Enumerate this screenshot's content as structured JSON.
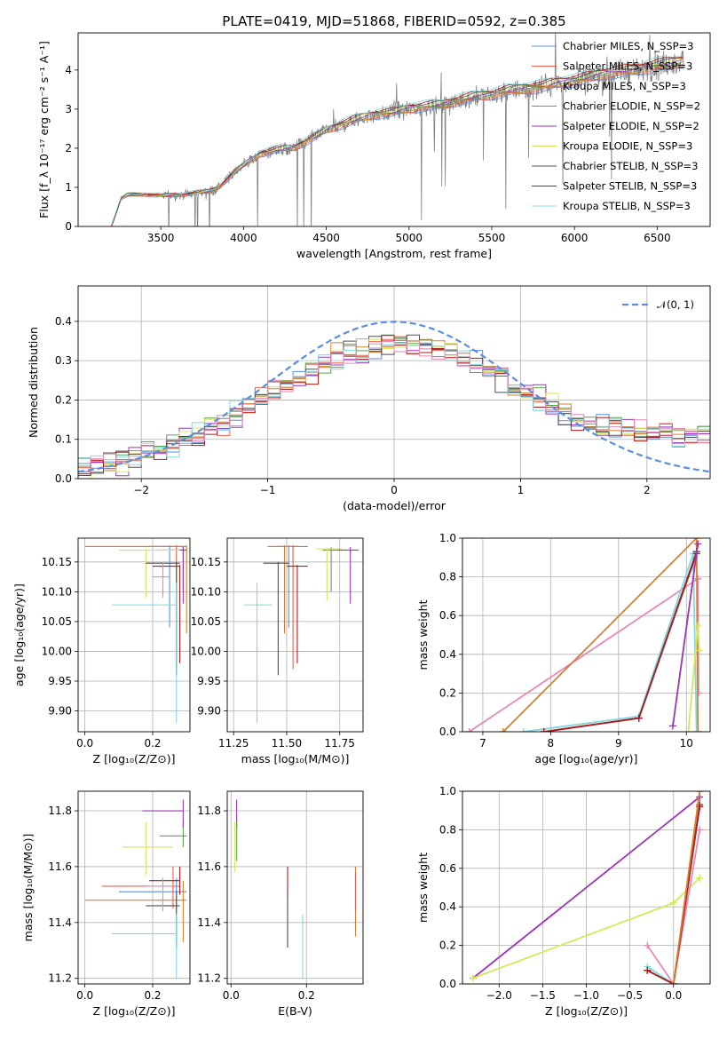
{
  "colors": {
    "Chabrier MILES": "#5b8de0",
    "Salpeter MILES": "#e8614a",
    "Kroupa MILES": "#d97f2a",
    "Chabrier ELODIE": "#5aa05a",
    "Salpeter ELODIE": "#9b35b8",
    "Kroupa ELODIE": "#d4e85a",
    "Chabrier STELIB": "#505050",
    "Salpeter STELIB": "#b01a1a",
    "Kroupa STELIB": "#7fd8e0",
    "extra": "#e688b8",
    "data": "#808080"
  },
  "chart_data": [
    {
      "id": "spectrum",
      "type": "line",
      "title": "PLATE=0419, MJD=51868, FIBERID=0592, z=0.385",
      "xlabel": "wavelength [Angstrom, rest frame]",
      "ylabel": "Flux [f_λ 10⁻¹⁷ erg cm⁻² s⁻¹ A⁻¹]",
      "xlim": [
        3000,
        6820
      ],
      "ylim": [
        0,
        4.95
      ],
      "xticks": [
        3500,
        4000,
        4500,
        5000,
        5500,
        6000,
        6500
      ],
      "yticks": [
        0,
        1,
        2,
        3,
        4
      ],
      "grid": false,
      "legend_position": "top-right",
      "continuum": {
        "x": [
          3200,
          3260,
          3300,
          3400,
          3500,
          3600,
          3700,
          3800,
          3850,
          3900,
          3950,
          4000,
          4100,
          4200,
          4300,
          4400,
          4500,
          4600,
          4700,
          4800,
          4900,
          5000,
          5100,
          5200,
          5300,
          5400,
          5500,
          5600,
          5700,
          5800,
          5900,
          6000,
          6100,
          6200,
          6300,
          6400,
          6500,
          6600,
          6660
        ],
        "y": [
          0.0,
          0.7,
          0.8,
          0.82,
          0.78,
          0.8,
          0.85,
          0.9,
          1.0,
          1.2,
          1.4,
          1.55,
          1.85,
          1.95,
          2.0,
          2.2,
          2.45,
          2.6,
          2.75,
          2.85,
          2.9,
          3.0,
          3.05,
          3.1,
          3.2,
          3.3,
          3.35,
          3.45,
          3.5,
          3.55,
          3.65,
          3.7,
          3.8,
          3.9,
          3.95,
          4.0,
          4.1,
          4.15,
          4.2
        ]
      },
      "series": [
        {
          "name": "Chabrier MILES, N_SSP=3",
          "color_key": "Chabrier MILES"
        },
        {
          "name": "Salpeter MILES, N_SSP=3",
          "color_key": "Salpeter MILES"
        },
        {
          "name": "Kroupa MILES, N_SSP=3",
          "color_key": "Kroupa MILES"
        },
        {
          "name": "Chabrier ELODIE, N_SSP=2",
          "color_key": "Chabrier ELODIE"
        },
        {
          "name": "Salpeter ELODIE, N_SSP=2",
          "color_key": "Salpeter ELODIE"
        },
        {
          "name": "Kroupa ELODIE, N_SSP=3",
          "color_key": "Kroupa ELODIE"
        },
        {
          "name": "Chabrier STELIB, N_SSP=3",
          "color_key": "Chabrier STELIB"
        },
        {
          "name": "Salpeter STELIB, N_SSP=3",
          "color_key": "Salpeter STELIB"
        },
        {
          "name": "Kroupa STELIB, N_SSP=3",
          "color_key": "Kroupa STELIB"
        }
      ]
    },
    {
      "id": "residuals",
      "type": "line",
      "xlabel": "(data-model)/error",
      "ylabel": "Normed distribution",
      "xlim": [
        -2.5,
        2.5
      ],
      "ylim": [
        0,
        0.49
      ],
      "xticks": [
        -2,
        -1,
        0,
        1,
        2
      ],
      "yticks": [
        0.0,
        0.1,
        0.2,
        0.3,
        0.4
      ],
      "grid": true,
      "legend_position": "top-right",
      "legend": "𝒩(0, 1)",
      "bin_width": 0.1
    },
    {
      "id": "age_vs_Z",
      "type": "scatter",
      "xlabel": "Z [log₁₀(Z/Z⊙)]",
      "ylabel": "age  [log₁₀(age/yr)]",
      "xlim": [
        -0.02,
        0.31
      ],
      "ylim": [
        9.865,
        10.19
      ],
      "xticks": [
        0.0,
        0.2
      ],
      "yticks": [
        9.9,
        9.95,
        10.0,
        10.05,
        10.1,
        10.15
      ],
      "grid": true,
      "points": [
        {
          "key": "Chabrier MILES",
          "x": 0.25,
          "xerr": [
            0.2,
            0.29
          ],
          "y": 10.176,
          "yerr": [
            10.04,
            10.178
          ]
        },
        {
          "key": "Salpeter MILES",
          "x": 0.27,
          "xerr": [
            0.0,
            0.3
          ],
          "y": 10.176,
          "yerr": [
            9.97,
            10.178
          ]
        },
        {
          "key": "Kroupa MILES",
          "x": 0.3,
          "xerr": [
            0.0,
            0.3
          ],
          "y": 10.176,
          "yerr": [
            10.03,
            10.178
          ]
        },
        {
          "key": "Chabrier ELODIE",
          "x": 0.29,
          "xerr": [
            0.25,
            0.3
          ],
          "y": 10.17,
          "yerr": [
            10.1,
            10.175
          ]
        },
        {
          "key": "Salpeter ELODIE",
          "x": 0.29,
          "xerr": [
            0.22,
            0.3
          ],
          "y": 10.17,
          "yerr": [
            10.08,
            10.175
          ]
        },
        {
          "key": "Kroupa ELODIE",
          "x": 0.18,
          "xerr": [
            0.1,
            0.28
          ],
          "y": 10.17,
          "yerr": [
            10.09,
            10.172
          ]
        },
        {
          "key": "Chabrier STELIB",
          "x": 0.27,
          "xerr": [
            0.18,
            0.28
          ],
          "y": 10.148,
          "yerr": [
            9.96,
            10.15
          ]
        },
        {
          "key": "Salpeter STELIB",
          "x": 0.28,
          "xerr": [
            0.2,
            0.28
          ],
          "y": 10.143,
          "yerr": [
            9.98,
            10.145
          ]
        },
        {
          "key": "Kroupa STELIB",
          "x": 0.27,
          "xerr": [
            0.08,
            0.27
          ],
          "y": 10.078,
          "yerr": [
            9.88,
            10.115
          ]
        },
        {
          "key": "extra",
          "x": 0.23,
          "xerr": [
            0.2,
            0.25
          ],
          "y": 10.125,
          "yerr": [
            10.09,
            10.148
          ]
        }
      ]
    },
    {
      "id": "age_vs_mass",
      "type": "scatter",
      "xlabel": "mass [log₁₀(M/M⊙)]",
      "xlim": [
        11.22,
        11.86
      ],
      "ylim": [
        9.865,
        10.19
      ],
      "xticks": [
        11.25,
        11.5,
        11.75
      ],
      "yticks": [
        9.9,
        9.95,
        10.0,
        10.05,
        10.1,
        10.15
      ],
      "grid": true,
      "points": [
        {
          "key": "Chabrier MILES",
          "x": 11.51,
          "xerr": [
            11.46,
            11.56
          ],
          "y": 10.176,
          "yerr": [
            10.04,
            10.178
          ]
        },
        {
          "key": "Salpeter MILES",
          "x": 11.53,
          "xerr": [
            11.44,
            11.6
          ],
          "y": 10.176,
          "yerr": [
            9.97,
            10.178
          ]
        },
        {
          "key": "Kroupa MILES",
          "x": 11.49,
          "xerr": [
            11.41,
            11.56
          ],
          "y": 10.176,
          "yerr": [
            10.03,
            10.178
          ]
        },
        {
          "key": "Chabrier ELODIE",
          "x": 11.71,
          "xerr": [
            11.67,
            11.76
          ],
          "y": 10.17,
          "yerr": [
            10.1,
            10.175
          ]
        },
        {
          "key": "Salpeter ELODIE",
          "x": 11.8,
          "xerr": [
            11.74,
            11.84
          ],
          "y": 10.17,
          "yerr": [
            10.08,
            10.175
          ]
        },
        {
          "key": "Kroupa ELODIE",
          "x": 11.69,
          "xerr": [
            11.64,
            11.76
          ],
          "y": 10.172,
          "yerr": [
            10.085,
            10.174
          ]
        },
        {
          "key": "Chabrier STELIB",
          "x": 11.46,
          "xerr": [
            11.39,
            11.51
          ],
          "y": 10.148,
          "yerr": [
            9.96,
            10.15
          ]
        },
        {
          "key": "Salpeter STELIB",
          "x": 11.55,
          "xerr": [
            11.5,
            11.6
          ],
          "y": 10.143,
          "yerr": [
            9.98,
            10.145
          ]
        },
        {
          "key": "Kroupa STELIB",
          "x": 11.36,
          "xerr": [
            11.3,
            11.43
          ],
          "y": 10.078,
          "yerr": [
            9.88,
            10.115
          ]
        }
      ]
    },
    {
      "id": "weight_vs_age",
      "type": "line",
      "xlabel": "age  [log₁₀(age/yr)]",
      "ylabel": "mass weight",
      "xlim": [
        6.7,
        10.35
      ],
      "ylim": [
        0.0,
        1.0
      ],
      "xticks": [
        7,
        8,
        9,
        10
      ],
      "yticks": [
        0.0,
        0.2,
        0.4,
        0.6,
        0.8,
        1.0
      ],
      "grid": true,
      "series": [
        {
          "key": "extra",
          "x": [
            6.8,
            10.17,
            10.18,
            10.17
          ],
          "y": [
            0.0,
            0.79,
            0.2,
            0.79
          ]
        },
        {
          "key": "Kroupa MILES",
          "x": [
            7.3,
            10.15,
            10.17
          ],
          "y": [
            0.0,
            1.0,
            0.0
          ]
        },
        {
          "key": "Kroupa STELIB",
          "x": [
            7.6,
            9.3,
            10.1,
            10.15
          ],
          "y": [
            0.0,
            0.08,
            0.92,
            0.0
          ]
        },
        {
          "key": "Chabrier STELIB",
          "x": [
            7.9,
            9.3,
            10.15
          ],
          "y": [
            0.0,
            0.07,
            0.93
          ]
        },
        {
          "key": "Salpeter STELIB",
          "x": [
            7.9,
            9.3,
            10.15
          ],
          "y": [
            0.0,
            0.07,
            0.92
          ]
        },
        {
          "key": "Salpeter ELODIE",
          "x": [
            9.8,
            10.17
          ],
          "y": [
            0.03,
            0.97
          ]
        },
        {
          "key": "Kroupa ELODIE",
          "x": [
            10.03,
            10.17,
            10.19
          ],
          "y": [
            0.0,
            0.55,
            0.42
          ]
        }
      ]
    },
    {
      "id": "mass_vs_Z",
      "type": "scatter",
      "xlabel": "Z [log₁₀(Z/Z⊙)]",
      "ylabel": "mass [log₁₀(M/M⊙)]",
      "xlim": [
        -0.02,
        0.31
      ],
      "ylim": [
        11.18,
        11.87
      ],
      "xticks": [
        0.0,
        0.2
      ],
      "yticks": [
        11.2,
        11.4,
        11.6,
        11.8
      ],
      "grid": true,
      "points": [
        {
          "key": "Chabrier MILES",
          "x": 0.27,
          "xerr": [
            0.1,
            0.3
          ],
          "y": 11.51,
          "yerr": [
            11.44,
            11.56
          ]
        },
        {
          "key": "Salpeter MILES",
          "x": 0.26,
          "xerr": [
            0.05,
            0.28
          ],
          "y": 11.53,
          "yerr": [
            11.45,
            11.6
          ]
        },
        {
          "key": "Kroupa MILES",
          "x": 0.29,
          "xerr": [
            0.0,
            0.3
          ],
          "y": 11.48,
          "yerr": [
            11.33,
            11.55
          ]
        },
        {
          "key": "Chabrier ELODIE",
          "x": 0.29,
          "xerr": [
            0.22,
            0.3
          ],
          "y": 11.71,
          "yerr": [
            11.67,
            11.76
          ]
        },
        {
          "key": "Salpeter ELODIE",
          "x": 0.29,
          "xerr": [
            0.17,
            0.29
          ],
          "y": 11.8,
          "yerr": [
            11.74,
            11.84
          ]
        },
        {
          "key": "Kroupa ELODIE",
          "x": 0.18,
          "xerr": [
            0.11,
            0.26
          ],
          "y": 11.67,
          "yerr": [
            11.57,
            11.76
          ]
        },
        {
          "key": "Chabrier STELIB",
          "x": 0.27,
          "xerr": [
            0.18,
            0.28
          ],
          "y": 11.46,
          "yerr": [
            11.31,
            11.51
          ]
        },
        {
          "key": "Salpeter STELIB",
          "x": 0.28,
          "xerr": [
            0.19,
            0.28
          ],
          "y": 11.55,
          "yerr": [
            11.5,
            11.6
          ]
        },
        {
          "key": "Kroupa STELIB",
          "x": 0.27,
          "xerr": [
            0.08,
            0.27
          ],
          "y": 11.36,
          "yerr": [
            11.2,
            11.43
          ]
        },
        {
          "key": "extra",
          "x": 0.23,
          "xerr": [
            0.18,
            0.26
          ],
          "y": 11.53,
          "yerr": [
            11.44,
            11.56
          ]
        }
      ]
    },
    {
      "id": "mass_vs_ebv",
      "type": "scatter",
      "xlabel": "E(B-V)",
      "xlim": [
        -0.01,
        0.35
      ],
      "ylim": [
        11.18,
        11.87
      ],
      "xticks": [
        0.0,
        0.2
      ],
      "yticks": [
        11.2,
        11.4,
        11.6,
        11.8
      ],
      "grid": true,
      "points": [
        {
          "key": "Kroupa ELODIE",
          "x": 0.01,
          "y": 11.67,
          "yerr": [
            11.58,
            11.76
          ]
        },
        {
          "key": "Salpeter ELODIE",
          "x": 0.015,
          "y": 11.8,
          "yerr": [
            11.74,
            11.84
          ]
        },
        {
          "key": "Chabrier ELODIE",
          "x": 0.015,
          "y": 11.71,
          "yerr": [
            11.62,
            11.76
          ]
        },
        {
          "key": "Salpeter STELIB",
          "x": 0.15,
          "y": 11.55,
          "yerr": [
            11.48,
            11.6
          ]
        },
        {
          "key": "Chabrier STELIB",
          "x": 0.15,
          "y": 11.46,
          "yerr": [
            11.31,
            11.51
          ]
        },
        {
          "key": "Kroupa STELIB",
          "x": 0.19,
          "y": 11.36,
          "yerr": [
            11.2,
            11.43
          ]
        },
        {
          "key": "Kroupa MILES",
          "x": 0.33,
          "y": 11.48,
          "yerr": [
            11.35,
            11.6
          ]
        },
        {
          "key": "Salpeter MILES",
          "x": 0.33,
          "y": 11.53,
          "yerr": [
            11.44,
            11.58
          ]
        }
      ]
    },
    {
      "id": "weight_vs_Z",
      "type": "line",
      "xlabel": "Z [log₁₀(Z/Z⊙)]",
      "ylabel": "mass weight",
      "xlim": [
        -2.42,
        0.42
      ],
      "ylim": [
        0.0,
        1.0
      ],
      "xticks": [
        -2.0,
        -1.5,
        -1.0,
        -0.5,
        0.0
      ],
      "yticks": [
        0.0,
        0.2,
        0.4,
        0.6,
        0.8,
        1.0
      ],
      "grid": true,
      "series": [
        {
          "key": "Salpeter ELODIE",
          "x": [
            -2.3,
            0.3
          ],
          "y": [
            0.03,
            0.97
          ]
        },
        {
          "key": "Kroupa ELODIE",
          "x": [
            -2.3,
            0.0,
            0.3
          ],
          "y": [
            0.03,
            0.42,
            0.55
          ]
        },
        {
          "key": "extra",
          "x": [
            -0.3,
            0.0,
            0.3
          ],
          "y": [
            0.2,
            0.0,
            0.8
          ]
        },
        {
          "key": "Kroupa STELIB",
          "x": [
            -0.3,
            0.0,
            0.3
          ],
          "y": [
            0.09,
            0.0,
            0.92
          ]
        },
        {
          "key": "Chabrier STELIB",
          "x": [
            -0.3,
            0.0,
            0.3
          ],
          "y": [
            0.07,
            0.0,
            0.93
          ]
        },
        {
          "key": "Salpeter STELIB",
          "x": [
            -0.3,
            0.0,
            0.3
          ],
          "y": [
            0.07,
            0.0,
            0.92
          ]
        },
        {
          "key": "Kroupa MILES",
          "x": [
            0.0,
            0.3
          ],
          "y": [
            0.0,
            1.0
          ]
        }
      ]
    }
  ]
}
